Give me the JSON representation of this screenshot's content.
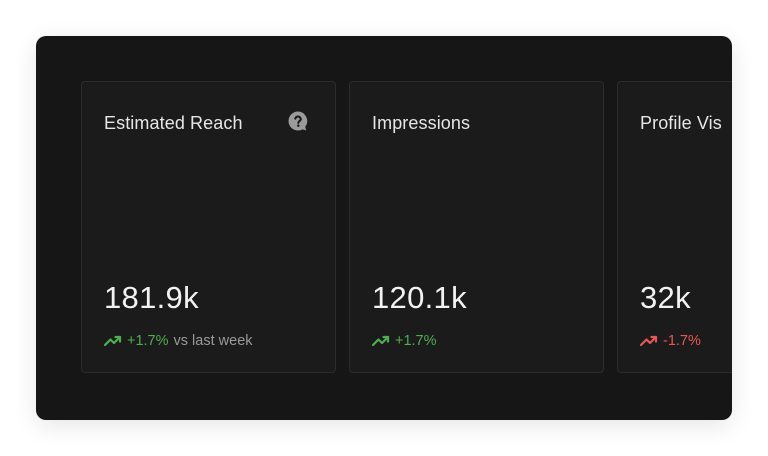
{
  "colors": {
    "panel_bg": "#161616",
    "card_bg": "#1b1b1b",
    "positive": "#4caf50",
    "negative": "#e85656"
  },
  "cards": [
    {
      "title": "Estimated Reach",
      "value": "181.9k",
      "change": "+1.7%",
      "change_suffix": "vs last week",
      "trend": "up",
      "icon": "help-icon"
    },
    {
      "title": "Impressions",
      "value": "120.1k",
      "change": "+1.7%",
      "trend": "up"
    },
    {
      "title": "Profile Vis",
      "value": "32k",
      "change": "-1.7%",
      "trend": "down"
    }
  ]
}
